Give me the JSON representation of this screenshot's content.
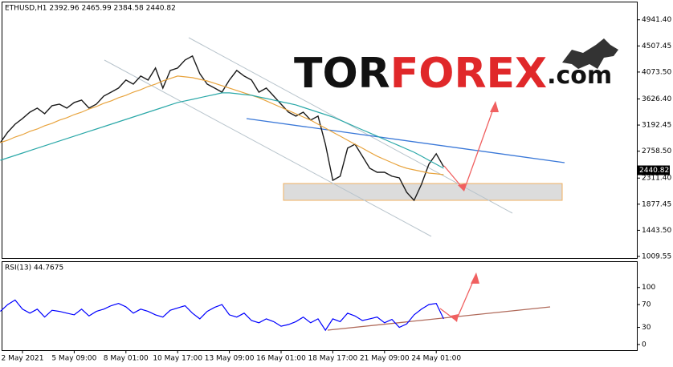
{
  "chart_data": [
    {
      "type": "line",
      "title": "ETHUSD,H1  2392.96 2465.99 2384.58 2440.82",
      "logo": [
        "TOR",
        "FOREX",
        ".com"
      ],
      "categories": [
        null,
        null,
        null,
        "2 May 2021",
        null,
        null,
        null,
        null,
        null,
        null,
        "5 May 09:00",
        null,
        null,
        null,
        null,
        null,
        null,
        "8 May 01:00",
        null,
        null,
        null,
        null,
        null,
        null,
        "10 May 17:00",
        null,
        null,
        null,
        null,
        null,
        null,
        "13 May 09:00",
        null,
        null,
        null,
        null,
        null,
        null,
        "16 May 01:00",
        null,
        null,
        null,
        null,
        null,
        null,
        "18 May 17:00",
        null,
        null,
        null,
        null,
        null,
        null,
        "21 May 09:00",
        null,
        null,
        null,
        null,
        null,
        null,
        "24 May 01:00",
        null
      ],
      "series": [
        {
          "color": "#1a1a1a",
          "values": [
            2901,
            3074,
            3207,
            3301,
            3407,
            3474,
            3381,
            3514,
            3540,
            3474,
            3567,
            3607,
            3474,
            3540,
            3674,
            3740,
            3807,
            3940,
            3873,
            4007,
            3940,
            4140,
            3807,
            4100,
            4140,
            4273,
            4340,
            4047,
            3873,
            3807,
            3740,
            3940,
            4100,
            4007,
            3940,
            3740,
            3807,
            3674,
            3540,
            3407,
            3341,
            3407,
            3274,
            3341,
            2874,
            2275,
            2342,
            2808,
            2874,
            2675,
            2475,
            2408,
            2408,
            2342,
            2315,
            2075,
            1942,
            2208,
            2541,
            2715,
            2501
          ]
        },
        {
          "color": "#e8a33c",
          "values": [
            2901,
            2941,
            2994,
            3034,
            3088,
            3127,
            3181,
            3221,
            3274,
            3314,
            3367,
            3407,
            3460,
            3500,
            3554,
            3594,
            3647,
            3687,
            3740,
            3780,
            3833,
            3873,
            3927,
            3967,
            4007,
            3993,
            3980,
            3953,
            3926,
            3887,
            3847,
            3807,
            3767,
            3727,
            3687,
            3647,
            3594,
            3540,
            3487,
            3434,
            3380,
            3327,
            3274,
            3207,
            3141,
            3074,
            3008,
            2941,
            2874,
            2808,
            2741,
            2675,
            2621,
            2568,
            2515,
            2475,
            2448,
            2422,
            2395,
            2382,
            2368
          ]
        },
        {
          "color": "#2aa8a8",
          "values": [
            2608,
            2648,
            2688,
            2728,
            2768,
            2808,
            2848,
            2888,
            2928,
            2968,
            3008,
            3048,
            3088,
            3127,
            3167,
            3207,
            3247,
            3287,
            3327,
            3367,
            3407,
            3447,
            3487,
            3527,
            3567,
            3594,
            3620,
            3647,
            3674,
            3700,
            3727,
            3727,
            3714,
            3700,
            3687,
            3660,
            3634,
            3607,
            3580,
            3554,
            3527,
            3487,
            3447,
            3407,
            3367,
            3327,
            3274,
            3221,
            3167,
            3114,
            3061,
            3008,
            2954,
            2901,
            2848,
            2794,
            2741,
            2675,
            2608,
            2541,
            2475
          ]
        }
      ],
      "last_price": 2440.82,
      "ylim": [
        983,
        5244
      ],
      "yticks": [
        {
          "value": 4941.4,
          "label": "4941.40"
        },
        {
          "value": 4507.45,
          "label": "4507.45"
        },
        {
          "value": 4073.5,
          "label": "4073.50"
        },
        {
          "value": 3626.4,
          "label": "3626.40"
        },
        {
          "value": 3192.45,
          "label": "3192.45"
        },
        {
          "value": 2758.5,
          "label": "2758.50"
        },
        {
          "value": 2311.4,
          "label": "2311.40"
        },
        {
          "value": 1877.45,
          "label": "1877.45"
        },
        {
          "value": 1443.5,
          "label": "1443.50"
        },
        {
          "value": 1009.55,
          "label": "1009.55"
        }
      ]
    },
    {
      "type": "line",
      "title": "RSI(13) 44.7675",
      "series": [
        {
          "color": "#0000ff",
          "values": [
            58,
            70,
            78,
            62,
            55,
            62,
            48,
            60,
            58,
            55,
            52,
            62,
            50,
            58,
            62,
            68,
            72,
            66,
            55,
            62,
            58,
            52,
            48,
            60,
            64,
            68,
            55,
            45,
            58,
            65,
            70,
            52,
            48,
            55,
            42,
            38,
            45,
            40,
            32,
            35,
            40,
            48,
            38,
            45,
            25,
            45,
            40,
            55,
            50,
            42,
            45,
            48,
            38,
            44,
            30,
            36,
            52,
            62,
            70,
            72,
            45
          ]
        }
      ],
      "ylim": [
        -10,
        146
      ],
      "yticks": [
        0,
        30,
        70,
        100
      ]
    }
  ]
}
